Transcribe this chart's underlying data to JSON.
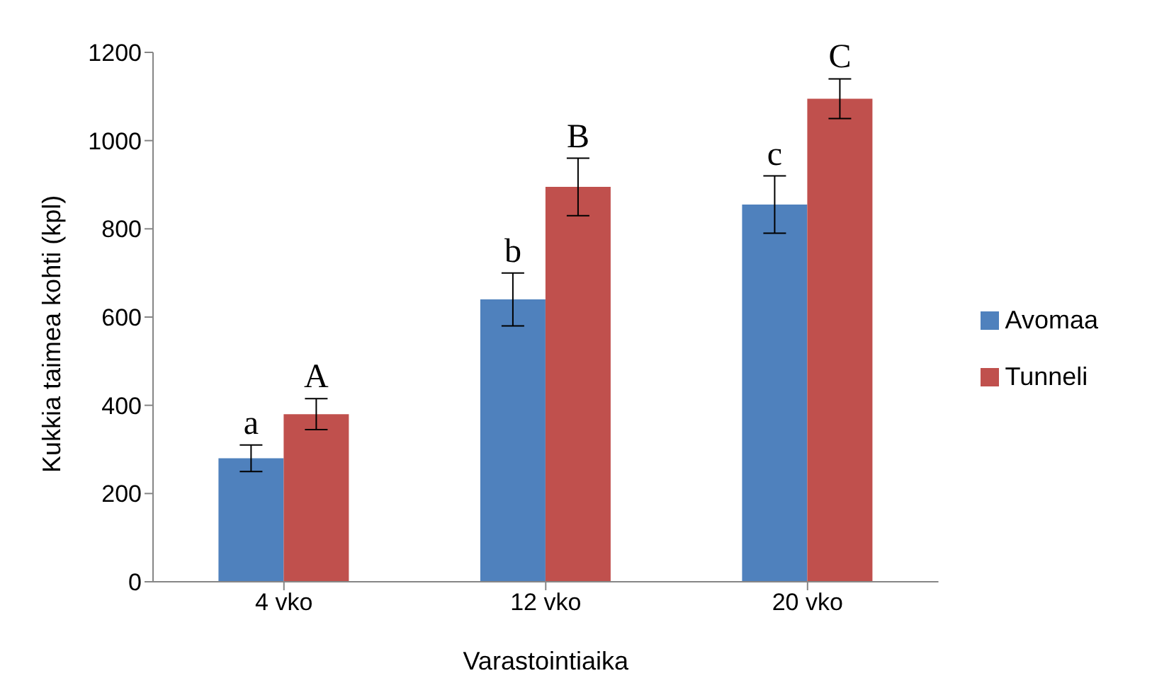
{
  "chart_data": {
    "type": "bar",
    "xlabel": "Varastointiaika",
    "ylabel": "Kukkia taimea kohti (kpl)",
    "categories": [
      "4 vko",
      "12 vko",
      "20 vko"
    ],
    "series": [
      {
        "name": "Avomaa",
        "color": "#4f81bd",
        "values": [
          280,
          640,
          855
        ],
        "errors": [
          30,
          60,
          65
        ]
      },
      {
        "name": "Tunneli",
        "color": "#c0504d",
        "values": [
          380,
          895,
          1095
        ],
        "errors": [
          35,
          65,
          45
        ]
      }
    ],
    "ylim": [
      0,
      1200
    ],
    "yticks": [
      0,
      200,
      400,
      600,
      800,
      1000,
      1200
    ],
    "grid": false,
    "legend": "right",
    "annotations": [
      {
        "text": "a",
        "x": "4 vko",
        "y": 280
      },
      {
        "text": "A",
        "x": "4 vko",
        "y": 380
      },
      {
        "text": "b",
        "x": "12 vko",
        "y": 640
      },
      {
        "text": "B",
        "x": "12 vko",
        "y": 895
      },
      {
        "text": "c",
        "x": "20 vko",
        "y": 855
      },
      {
        "text": "C",
        "x": "20 vko",
        "y": 1095
      }
    ]
  }
}
